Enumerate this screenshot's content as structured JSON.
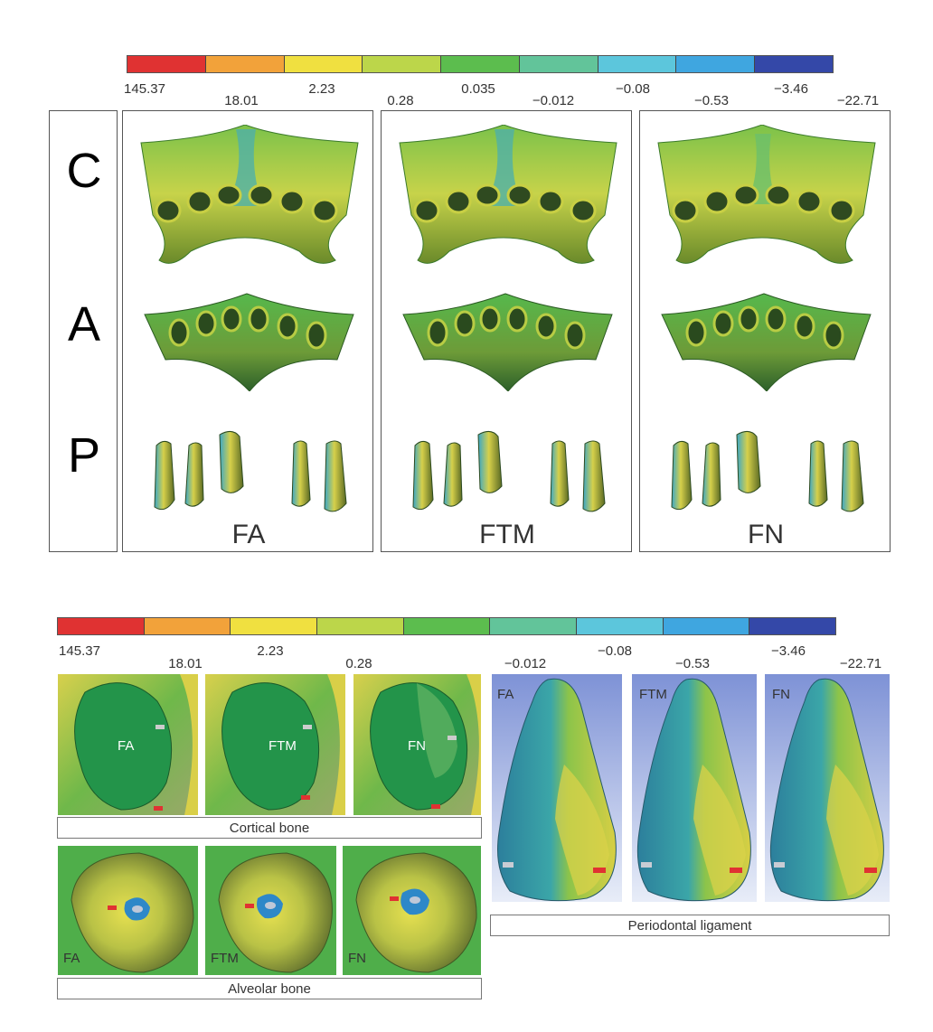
{
  "colors": {
    "scale": [
      "#e03232",
      "#f2a23a",
      "#f0e040",
      "#bcd64a",
      "#5cbd4e",
      "#62c49a",
      "#5cc6dc",
      "#3fa6e0",
      "#3448a8"
    ],
    "bone_green": "#2f9f4c",
    "bone_yellow": "#cfd24a",
    "teal": "#3c9fa6",
    "blue_bg": "#8aa2dc"
  },
  "top_scale": {
    "ticks": [
      "145.37",
      "18.01",
      "2.23",
      "0.28",
      "0.035",
      "−0.012",
      "−0.08",
      "−0.53",
      "−3.46",
      "−22.71"
    ]
  },
  "top_figure": {
    "row_letters": [
      "C",
      "A",
      "P"
    ],
    "panels": [
      {
        "label": "FA"
      },
      {
        "label": "FTM"
      },
      {
        "label": "FN"
      }
    ]
  },
  "bottom_scale": {
    "ticks": [
      "145.37",
      "18.01",
      "2.23",
      "0.28",
      "−0.012",
      "−0.08",
      "−0.53",
      "−3.46",
      "−22.71"
    ]
  },
  "bottom_figure": {
    "cortical": {
      "tiles": [
        {
          "label": "FA"
        },
        {
          "label": "FTM"
        },
        {
          "label": "FN"
        }
      ],
      "caption": "Cortical bone"
    },
    "alveolar": {
      "tiles": [
        {
          "label": "FA"
        },
        {
          "label": "FTM"
        },
        {
          "label": "FN"
        }
      ],
      "caption": "Alveolar bone"
    },
    "pdl": {
      "tiles": [
        {
          "label": "FA"
        },
        {
          "label": "FTM"
        },
        {
          "label": "FN"
        }
      ],
      "caption": "Periodontal ligament"
    }
  }
}
